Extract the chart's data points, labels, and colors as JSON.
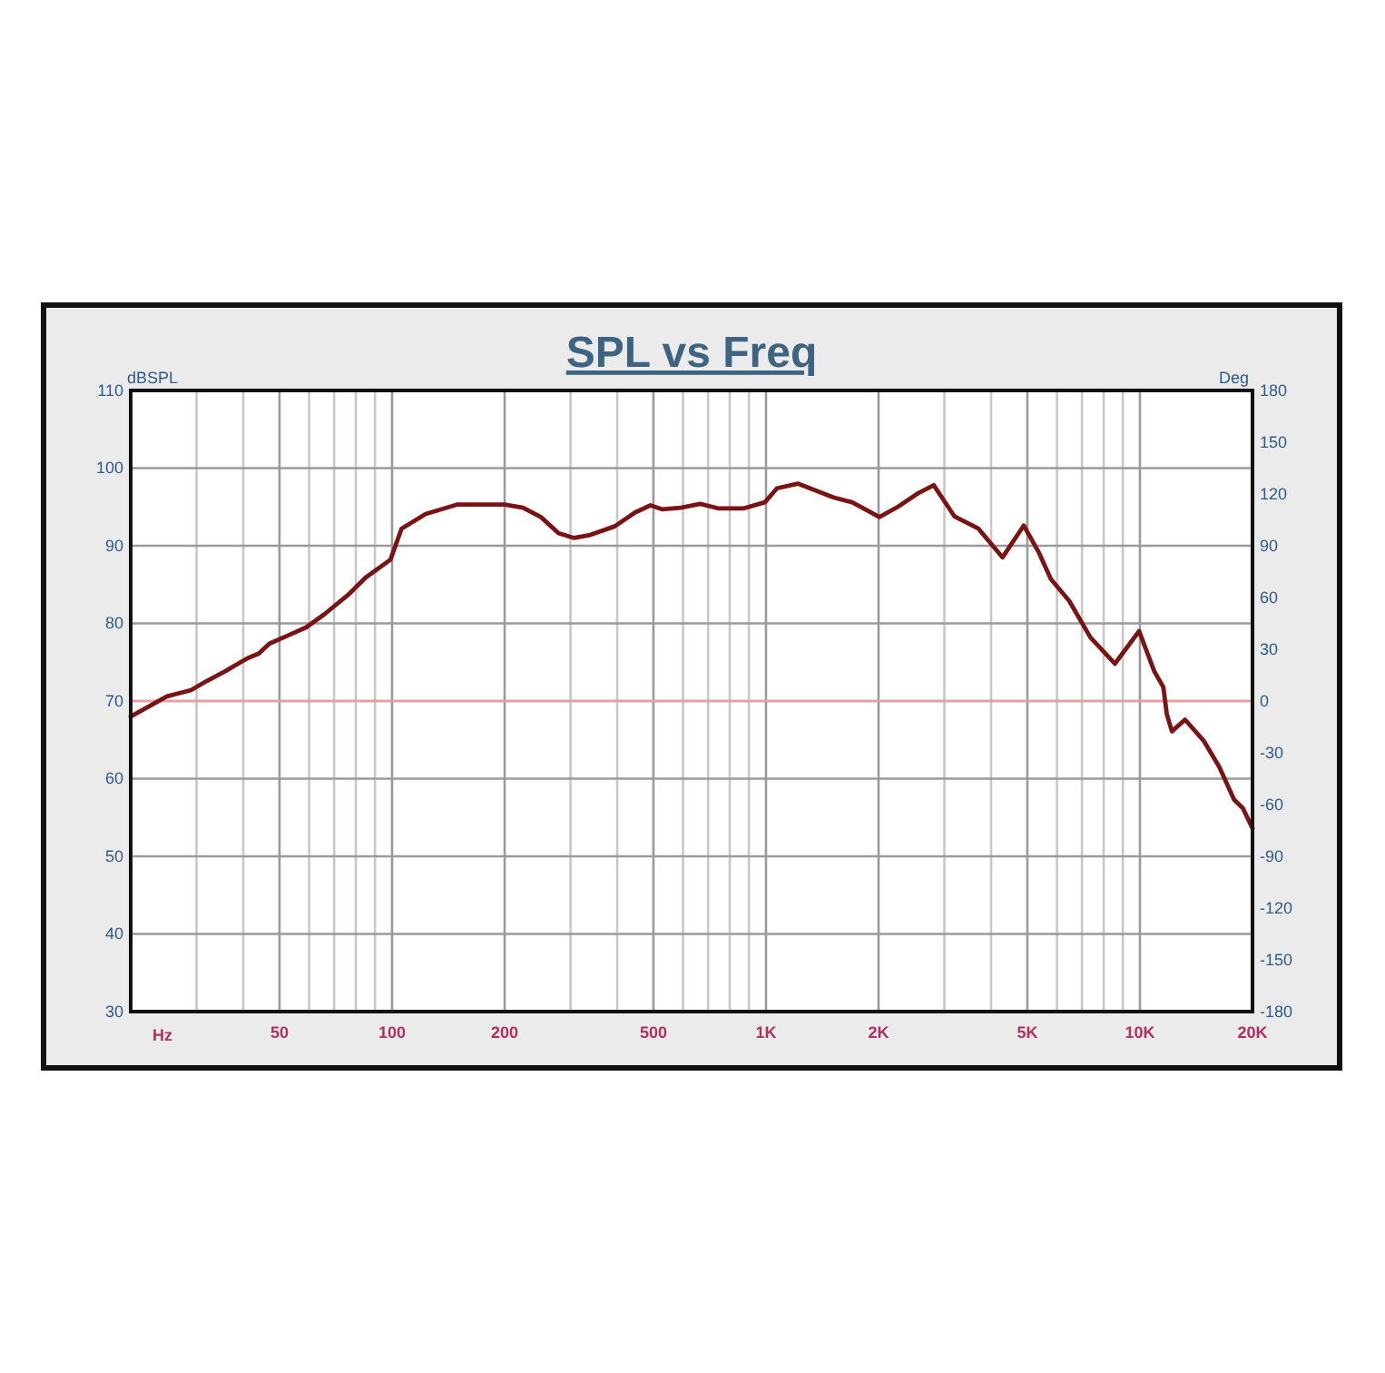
{
  "chart_data": {
    "type": "line",
    "title": "SPL vs Freq",
    "xlabel": "Hz",
    "ylabel": "dBSPL",
    "y2label": "Deg",
    "log": "x",
    "grid": true,
    "marker": "none",
    "line_style": "solid",
    "xlim": [
      20,
      20000
    ],
    "xticks": [
      {
        "value": 20,
        "label": null
      },
      {
        "value": 30,
        "label": null
      },
      {
        "value": 40,
        "label": null
      },
      50,
      {
        "value": 60,
        "label": null
      },
      {
        "value": 70,
        "label": null
      },
      {
        "value": 80,
        "label": null
      },
      {
        "value": 90,
        "label": null
      },
      100,
      200,
      {
        "value": 300,
        "label": null
      },
      {
        "value": 400,
        "label": null
      },
      500,
      {
        "value": 600,
        "label": null
      },
      {
        "value": 700,
        "label": null
      },
      {
        "value": 800,
        "label": null
      },
      {
        "value": 900,
        "label": null
      },
      {
        "value": 1000,
        "label": "1K"
      },
      {
        "value": 2000,
        "label": "2K"
      },
      {
        "value": 3000,
        "label": null
      },
      {
        "value": 4000,
        "label": null
      },
      {
        "value": 5000,
        "label": "5K"
      },
      {
        "value": 6000,
        "label": null
      },
      {
        "value": 7000,
        "label": null
      },
      {
        "value": 8000,
        "label": null
      },
      {
        "value": 9000,
        "label": null
      },
      {
        "value": 10000,
        "label": "10K"
      },
      {
        "value": 20000,
        "label": "20K"
      }
    ],
    "ylim": [
      30,
      110
    ],
    "yticks": [
      30,
      40,
      50,
      60,
      70,
      80,
      90,
      100,
      110
    ],
    "y2lim": [
      -180,
      180
    ],
    "y2ticks": [
      -180,
      -150,
      -120,
      -90,
      -60,
      -30,
      0,
      30,
      60,
      90,
      120,
      150,
      180
    ],
    "ref_lines": [
      {
        "axis": "y2",
        "value": 0,
        "color": "#e8a0a0"
      }
    ],
    "series": [
      {
        "color": "#7a1414",
        "x": [
          20,
          25,
          29,
          32,
          36,
          41,
          44,
          47,
          53,
          59,
          66,
          76,
          85,
          99,
          106,
          123,
          149,
          200,
          224,
          250,
          279,
          307,
          339,
          394,
          447,
          491,
          527,
          592,
          667,
          748,
          869,
          993,
          1070,
          1216,
          1520,
          1700,
          2010,
          2250,
          2560,
          2810,
          3190,
          3700,
          4290,
          4890,
          5370,
          5780,
          6470,
          7370,
          8570,
          9950,
          10930,
          11550,
          11800,
          12180,
          13200,
          14800,
          16310,
          17850,
          18850,
          20000
        ],
        "values": [
          68,
          70.6,
          71.4,
          72.6,
          73.9,
          75.5,
          76.1,
          77.4,
          78.5,
          79.5,
          81.2,
          83.6,
          85.9,
          88.2,
          92.2,
          94.1,
          95.3,
          95.3,
          94.9,
          93.7,
          91.6,
          91,
          91.4,
          92.5,
          94.3,
          95.2,
          94.7,
          94.9,
          95.4,
          94.8,
          94.8,
          95.6,
          97.4,
          98,
          96.2,
          95.6,
          93.7,
          95,
          96.8,
          97.8,
          93.8,
          92.2,
          88.5,
          92.6,
          89.1,
          85.7,
          82.9,
          78.2,
          74.8,
          79,
          73.8,
          71.8,
          68.3,
          66.1,
          67.6,
          64.9,
          61.5,
          57.3,
          56.2,
          53.6
        ]
      }
    ]
  }
}
